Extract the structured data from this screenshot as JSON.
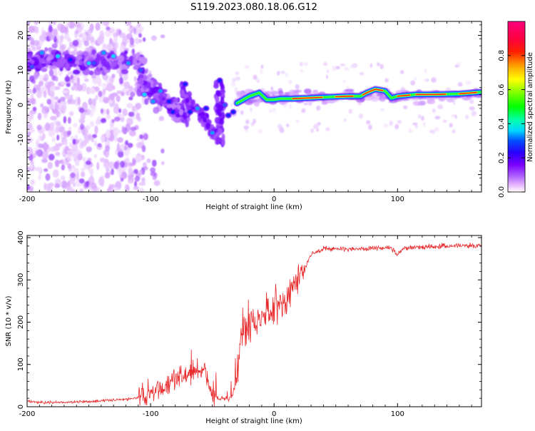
{
  "title": "S119.2023.080.18.06.G12",
  "colors": {
    "snr_line": "#e8292b",
    "track": "#3a2cff",
    "colormap": [
      "#ffffff",
      "#ff00ff",
      "#0000ff",
      "#00ffff",
      "#00ff00",
      "#ffff00",
      "#ff0000",
      "#ff0080"
    ]
  },
  "chart_data": [
    {
      "type": "heatmap",
      "xlabel": "Height of straight line (km)",
      "ylabel": "Frequency (Hz)",
      "xlim": [
        -200,
        168
      ],
      "ylim": [
        -25,
        24
      ],
      "x_ticks": [
        -200,
        -100,
        0,
        100
      ],
      "x_tick_labels": [
        "-200",
        "-100",
        "0",
        "100"
      ],
      "y_ticks": [
        -20,
        -10,
        0,
        10,
        20
      ],
      "y_tick_labels": [
        "-20",
        "-10",
        "0",
        "10",
        "20"
      ],
      "colorbar": {
        "label": "Normalized spectral amplitude",
        "range": [
          0,
          1
        ],
        "ticks": [
          0.0,
          0.2,
          0.4,
          0.6,
          0.8
        ],
        "tick_labels": [
          "0.0",
          "0.2",
          "0.4",
          "0.6",
          "0.8"
        ]
      },
      "ridge_track": {
        "x": [
          -30,
          -20,
          -12,
          -6,
          0,
          5,
          15,
          40,
          60,
          70,
          75,
          82,
          90,
          95,
          100,
          115,
          130,
          150,
          168
        ],
        "y": [
          0.5,
          2.5,
          3.5,
          1.5,
          1.5,
          1.8,
          1.8,
          2.2,
          2.5,
          2.5,
          3.5,
          4.5,
          4.0,
          2.0,
          2.5,
          3.0,
          3.0,
          3.2,
          3.7
        ]
      },
      "grid": false
    },
    {
      "type": "line",
      "xlabel": "Height of straight line (km)",
      "ylabel": "SNR (10 * v/v)",
      "xlim": [
        -200,
        168
      ],
      "ylim": [
        0,
        405
      ],
      "x_ticks": [
        -200,
        -100,
        0,
        100
      ],
      "x_tick_labels": [
        "-200",
        "-100",
        "0",
        "100"
      ],
      "y_ticks": [
        0,
        100,
        200,
        300,
        400
      ],
      "y_tick_labels": [
        "0",
        "100",
        "200",
        "300",
        "400"
      ],
      "series": [
        {
          "x": [
            -200,
            -180,
            -160,
            -140,
            -120,
            -110,
            -100,
            -90,
            -80,
            -70,
            -60,
            -55,
            -50,
            -45,
            -40,
            -35,
            -30,
            -28,
            -25,
            -20,
            -15,
            -10,
            -5,
            0,
            5,
            10,
            15,
            20,
            25,
            30,
            40,
            60,
            80,
            95,
            100,
            105,
            120,
            140,
            168
          ],
          "y": [
            12,
            10,
            11,
            14,
            18,
            22,
            30,
            45,
            60,
            75,
            90,
            80,
            30,
            20,
            18,
            20,
            60,
            140,
            180,
            190,
            200,
            215,
            225,
            230,
            235,
            245,
            270,
            300,
            330,
            360,
            375,
            372,
            375,
            375,
            360,
            375,
            378,
            380,
            382
          ]
        }
      ],
      "grid": false
    }
  ]
}
